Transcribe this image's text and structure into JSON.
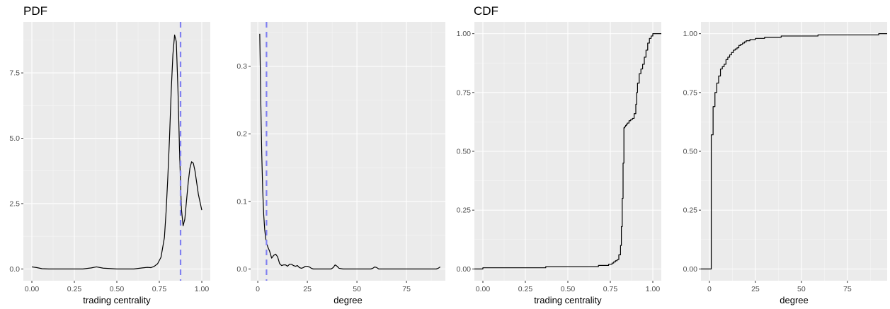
{
  "titles": {
    "pdf": "PDF",
    "cdf": "CDF"
  },
  "colors": {
    "panel_bg": "#EBEBEB",
    "grid_major": "#FFFFFF",
    "grid_minor": "#F5F5F5",
    "line": "#000000",
    "mean_line": "#8080F0",
    "tick_text": "#4D4D4D",
    "tick_mark": "#333333"
  },
  "chart_data": [
    {
      "type": "line",
      "group": "PDF",
      "xlabel": "trading centrality",
      "ylabel": "",
      "xlim": [
        -0.05,
        1.05
      ],
      "ylim": [
        -0.45,
        9.45
      ],
      "x_ticks": [
        0.0,
        0.25,
        0.5,
        0.75,
        1.0
      ],
      "x_tick_labels": [
        "0.00",
        "0.25",
        "0.50",
        "0.75",
        "1.00"
      ],
      "y_ticks": [
        0,
        2.5,
        5,
        7.5
      ],
      "y_tick_labels": [
        "0.0",
        "2.5",
        "5.0",
        "7.5"
      ],
      "grid": true,
      "vline": 0.875,
      "series": [
        {
          "x": [
            0.0,
            0.03,
            0.06,
            0.1,
            0.2,
            0.3,
            0.35,
            0.38,
            0.42,
            0.5,
            0.6,
            0.65,
            0.68,
            0.7,
            0.72,
            0.74,
            0.76,
            0.78,
            0.79,
            0.8,
            0.81,
            0.82,
            0.83,
            0.84,
            0.85,
            0.86,
            0.87,
            0.88,
            0.89,
            0.9,
            0.91,
            0.92,
            0.93,
            0.94,
            0.95,
            0.96,
            0.97,
            0.98,
            0.99,
            1.0
          ],
          "y": [
            0.08,
            0.05,
            0.01,
            0.0,
            0.0,
            0.0,
            0.04,
            0.08,
            0.03,
            0.0,
            0.0,
            0.04,
            0.06,
            0.05,
            0.1,
            0.2,
            0.45,
            1.2,
            2.2,
            3.5,
            5.0,
            6.8,
            8.2,
            8.95,
            8.7,
            6.8,
            4.3,
            2.3,
            1.65,
            1.9,
            2.6,
            3.3,
            3.85,
            4.1,
            4.05,
            3.75,
            3.3,
            2.85,
            2.55,
            2.25
          ]
        }
      ]
    },
    {
      "type": "line",
      "group": "PDF",
      "xlabel": "degree",
      "ylabel": "",
      "xlim": [
        -3.6,
        94.6
      ],
      "ylim": [
        -0.0174,
        0.3656
      ],
      "x_ticks": [
        0,
        25,
        50,
        75
      ],
      "x_tick_labels": [
        "0",
        "25",
        "50",
        "75"
      ],
      "y_ticks": [
        0,
        0.1,
        0.2,
        0.3
      ],
      "y_tick_labels": [
        "0.0",
        "0.1",
        "0.2",
        "0.3"
      ],
      "grid": true,
      "vline": 4.4,
      "series": [
        {
          "x": [
            1,
            1.5,
            2,
            2.5,
            3,
            3.5,
            4,
            4.5,
            5,
            6,
            7,
            8,
            9,
            10,
            11,
            12,
            13,
            14,
            15,
            16,
            17,
            18,
            19,
            20,
            21,
            22,
            23,
            24,
            25,
            26,
            27,
            28,
            30,
            35,
            37,
            38,
            39,
            40,
            41,
            43,
            50,
            57,
            58,
            59,
            60,
            61,
            65,
            70,
            80,
            90,
            91,
            92
          ],
          "y": [
            0.348,
            0.25,
            0.17,
            0.115,
            0.08,
            0.058,
            0.045,
            0.038,
            0.033,
            0.026,
            0.016,
            0.02,
            0.022,
            0.018,
            0.008,
            0.005,
            0.006,
            0.006,
            0.004,
            0.007,
            0.007,
            0.005,
            0.004,
            0.005,
            0.002,
            0.001,
            0.002,
            0.004,
            0.004,
            0.003,
            0.001,
            0.0,
            0.0,
            0.0,
            0.0,
            0.002,
            0.006,
            0.004,
            0.001,
            0.0,
            0.0,
            0.0,
            0.001,
            0.003,
            0.002,
            0.0,
            0.0,
            0.0,
            0.0,
            0.0,
            0.001,
            0.003
          ]
        }
      ]
    },
    {
      "type": "line",
      "group": "CDF",
      "step": true,
      "xlabel": "trading centrality",
      "ylabel": "",
      "xlim": [
        -0.05,
        1.05
      ],
      "ylim": [
        -0.05,
        1.05
      ],
      "x_ticks": [
        0.0,
        0.25,
        0.5,
        0.75,
        1.0
      ],
      "x_tick_labels": [
        "0.00",
        "0.25",
        "0.50",
        "0.75",
        "1.00"
      ],
      "y_ticks": [
        0,
        0.25,
        0.5,
        0.75,
        1.0
      ],
      "y_tick_labels": [
        "0.00",
        "0.25",
        "0.50",
        "0.75",
        "1.00"
      ],
      "grid": true,
      "series": [
        {
          "x": [
            -0.05,
            0.0,
            0.37,
            0.68,
            0.74,
            0.76,
            0.77,
            0.78,
            0.79,
            0.8,
            0.81,
            0.815,
            0.82,
            0.825,
            0.83,
            0.835,
            0.84,
            0.845,
            0.85,
            0.86,
            0.87,
            0.88,
            0.89,
            0.9,
            0.905,
            0.91,
            0.92,
            0.93,
            0.94,
            0.95,
            0.96,
            0.97,
            0.98,
            0.99,
            1.0,
            1.05
          ],
          "y": [
            0.0,
            0.005,
            0.01,
            0.015,
            0.02,
            0.025,
            0.03,
            0.035,
            0.04,
            0.06,
            0.1,
            0.18,
            0.3,
            0.45,
            0.6,
            0.605,
            0.61,
            0.615,
            0.62,
            0.63,
            0.635,
            0.64,
            0.66,
            0.7,
            0.75,
            0.79,
            0.83,
            0.85,
            0.87,
            0.9,
            0.93,
            0.96,
            0.98,
            0.99,
            1.0,
            1.0
          ]
        }
      ]
    },
    {
      "type": "line",
      "group": "CDF",
      "step": true,
      "xlabel": "degree",
      "ylabel": "",
      "xlim": [
        -4.6,
        96.6
      ],
      "ylim": [
        -0.05,
        1.05
      ],
      "x_ticks": [
        0,
        25,
        50,
        75
      ],
      "x_tick_labels": [
        "0",
        "25",
        "50",
        "75"
      ],
      "y_ticks": [
        0,
        0.25,
        0.5,
        0.75,
        1.0
      ],
      "y_tick_labels": [
        "0.00",
        "0.25",
        "0.50",
        "0.75",
        "1.00"
      ],
      "grid": true,
      "series": [
        {
          "x": [
            -4.6,
            0,
            1,
            2,
            3,
            4,
            5,
            6,
            7,
            8,
            9,
            10,
            11,
            12,
            13,
            14,
            15,
            16,
            17,
            18,
            19,
            20,
            22,
            25,
            30,
            39,
            59,
            92,
            96.6
          ],
          "y": [
            0.0,
            0.0,
            0.57,
            0.69,
            0.75,
            0.79,
            0.82,
            0.85,
            0.86,
            0.87,
            0.89,
            0.9,
            0.91,
            0.92,
            0.93,
            0.935,
            0.94,
            0.95,
            0.955,
            0.96,
            0.965,
            0.97,
            0.975,
            0.98,
            0.985,
            0.99,
            0.995,
            1.0,
            1.0
          ]
        }
      ]
    }
  ]
}
